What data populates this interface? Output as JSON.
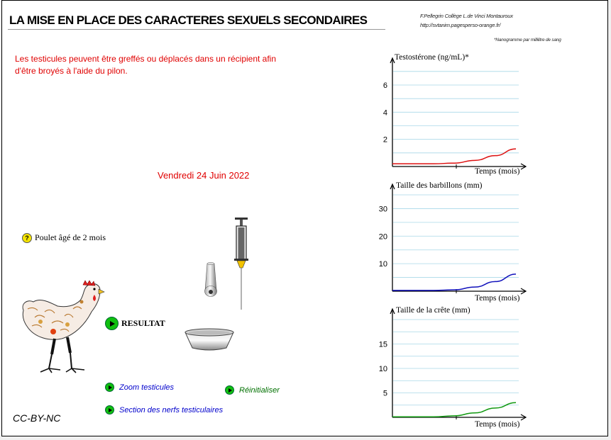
{
  "title": "LA MISE EN PLACE DES CARACTERES SEXUELS SECONDAIRES",
  "credits": {
    "author": "F.Pellegrin  Collège L.de Vinci Montauroux",
    "url": "http://svtanim.pagesperso-orange.fr/",
    "footnote": "*Nanogramme par millilitre de sang"
  },
  "intro_text": "Les testicules peuvent être greffés ou déplacés dans un récipient afin d'être broyés à l'aide du pilon.",
  "date": "Vendredi 24 Juin 2022",
  "info": {
    "icon": "help-icon",
    "label": "Poulet âgé de 2 mois"
  },
  "buttons": {
    "resultat": "RESULTAT",
    "zoom": "Zoom testicules",
    "nerfs": "Section des nerfs testiculaires",
    "reset": "Réinitialiser"
  },
  "license": "CC-BY-NC",
  "colors": {
    "testosterone": "#dd1111",
    "barbillons": "#1111bb",
    "crete": "#119911",
    "accent_red": "#e00000",
    "grid": "#a8d8e8"
  },
  "chart_data": [
    {
      "type": "line",
      "title": "Testostérone (ng/mL)*",
      "xlabel": "Temps (mois)",
      "ylabel": "Testostérone (ng/mL)*",
      "yticks": [
        2,
        4,
        6
      ],
      "ylim": [
        0,
        7.2
      ],
      "xlim": [
        0,
        6
      ],
      "grid": true,
      "series": [
        {
          "color": "#dd1111",
          "x": [
            0,
            2,
            3,
            4,
            5,
            6
          ],
          "y": [
            0.2,
            0.2,
            0.25,
            0.45,
            0.8,
            1.3
          ]
        }
      ]
    },
    {
      "type": "line",
      "title": "Taille des barbillons (mm)",
      "xlabel": "Temps (mois)",
      "ylabel": "Taille des barbillons (mm)",
      "yticks": [
        10,
        20,
        30
      ],
      "ylim": [
        0,
        35
      ],
      "xlim": [
        0,
        6
      ],
      "grid": true,
      "series": [
        {
          "color": "#1111bb",
          "x": [
            0,
            2,
            3,
            4,
            5,
            6
          ],
          "y": [
            0.3,
            0.3,
            0.5,
            1.5,
            3.5,
            6.2
          ]
        }
      ]
    },
    {
      "type": "line",
      "title": "Taille de la crête (mm)",
      "xlabel": "Temps (mois)",
      "ylabel": "Taille de la crête (mm)",
      "yticks": [
        5,
        10,
        15
      ],
      "ylim": [
        0,
        20
      ],
      "xlim": [
        0,
        6
      ],
      "grid": true,
      "series": [
        {
          "color": "#119911",
          "x": [
            0,
            2,
            3,
            4,
            5,
            6
          ],
          "y": [
            0.1,
            0.1,
            0.3,
            0.9,
            1.9,
            3.0
          ]
        }
      ]
    }
  ]
}
